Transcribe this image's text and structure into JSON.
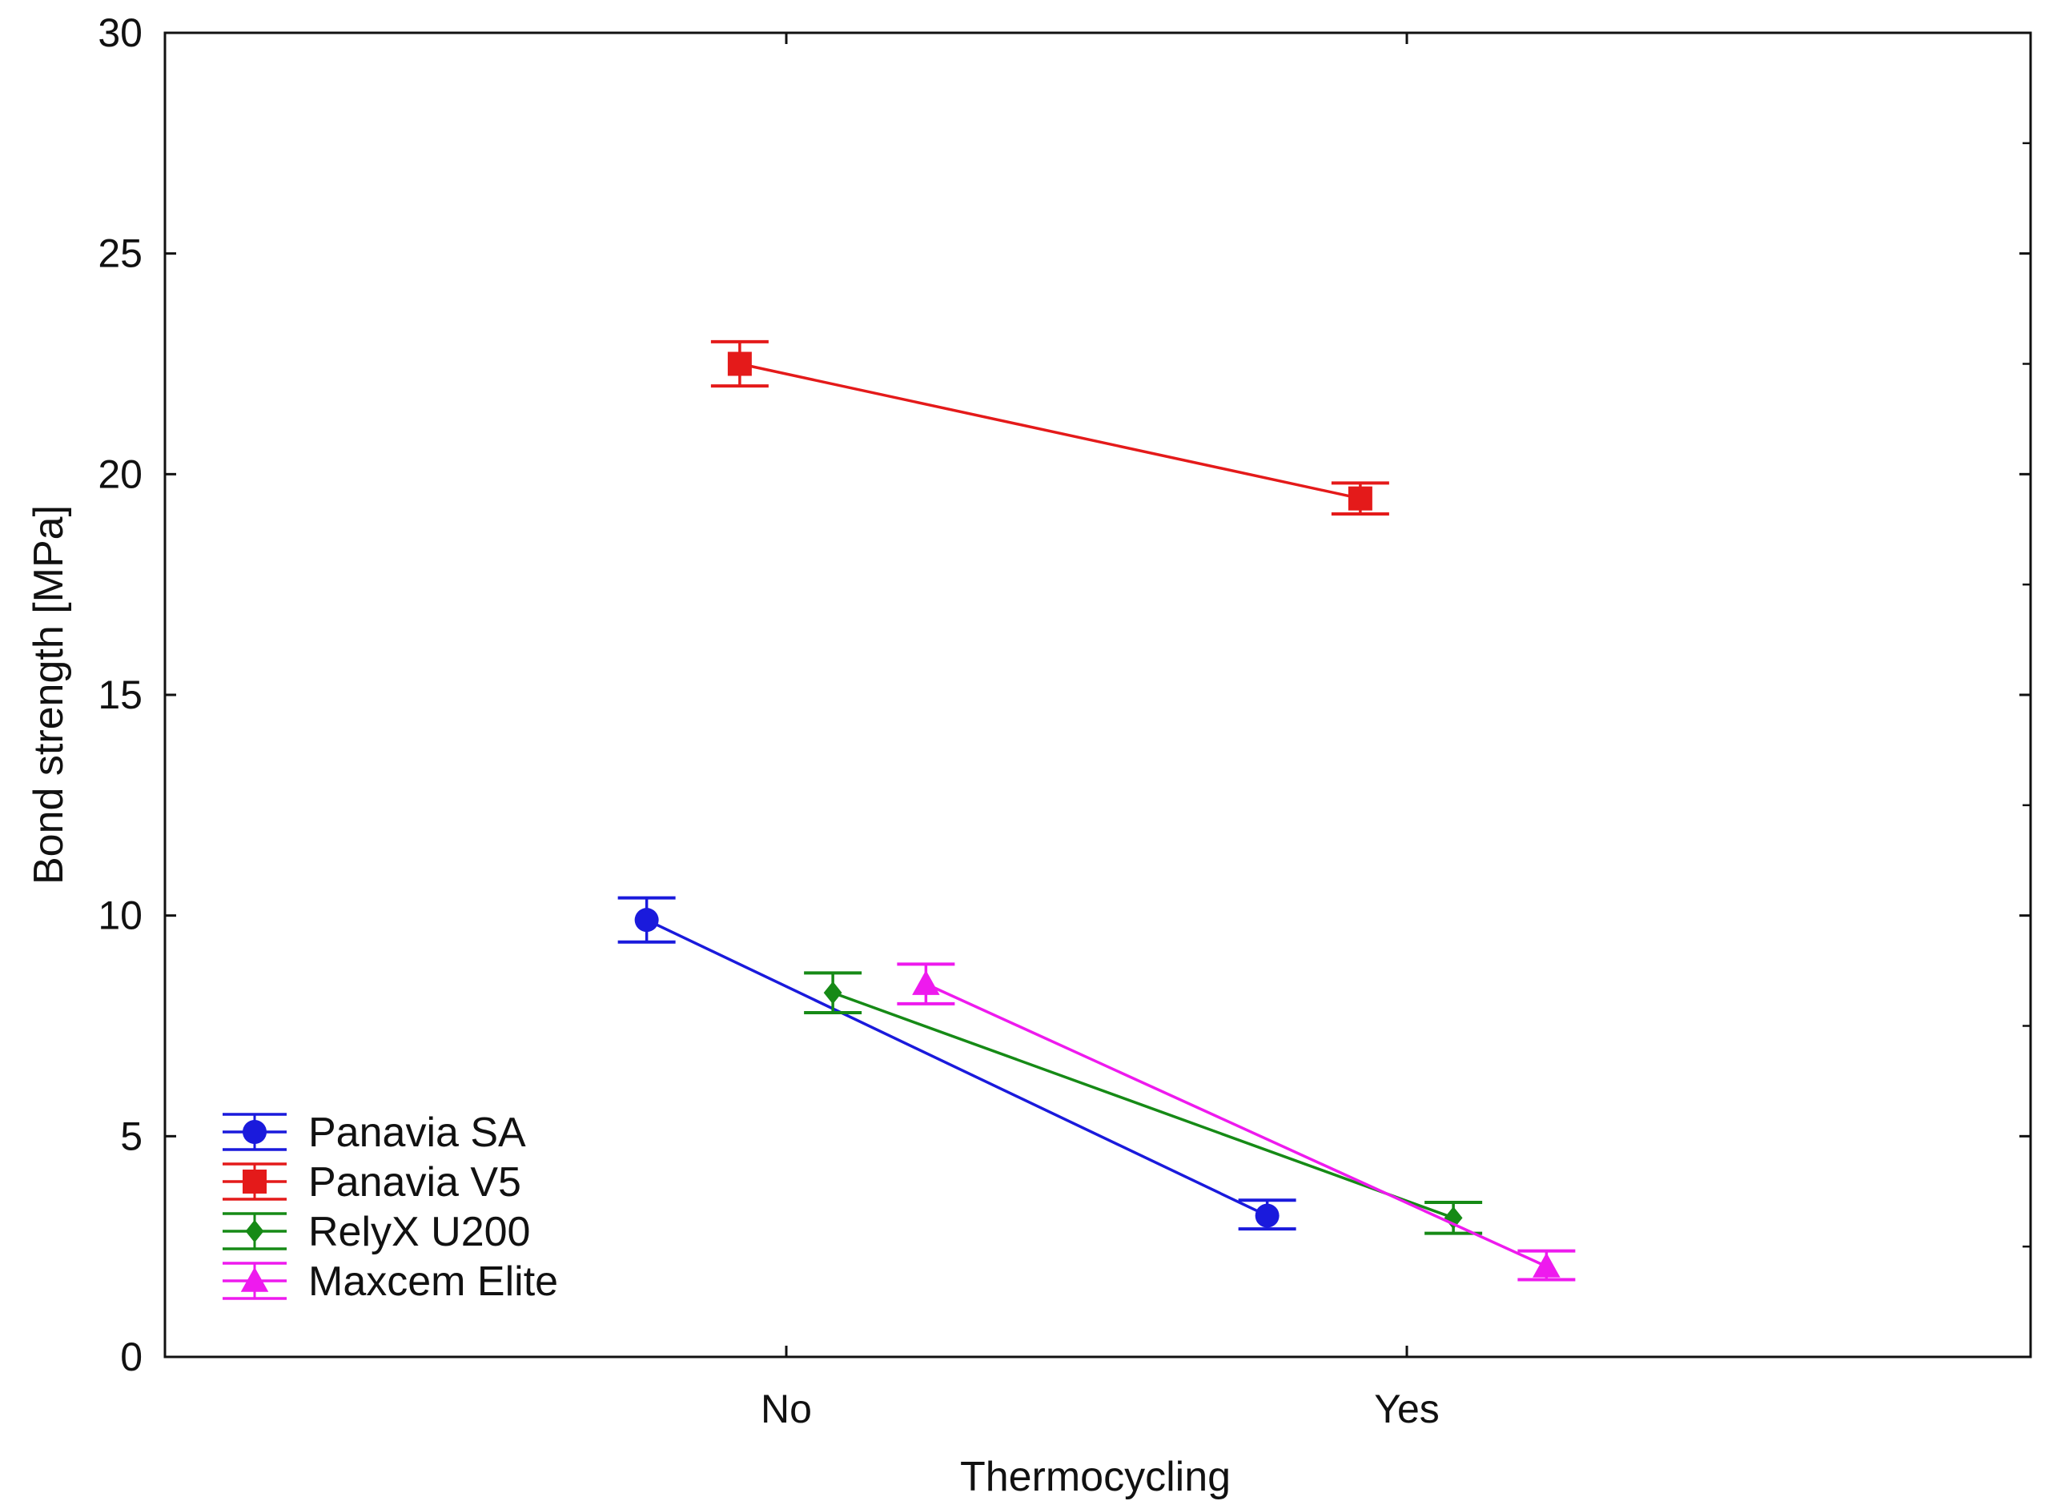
{
  "chart_data": {
    "type": "line",
    "title": "",
    "xlabel": "Thermocycling",
    "ylabel": "Bond strength [MPa]",
    "categories": [
      "No",
      "Yes"
    ],
    "ylim": [
      0,
      30
    ],
    "yticks": [
      0,
      5,
      10,
      15,
      20,
      25,
      30
    ],
    "y_tick_labels": [
      "0",
      "5",
      "10",
      "15",
      "20",
      "25",
      "30"
    ],
    "grid": false,
    "legend_position": "bottom-left",
    "series": [
      {
        "name": "Panavia SA",
        "color": "#1a1adc",
        "marker": "circle",
        "offset": -0.225,
        "values": [
          9.9,
          3.2
        ],
        "error_low": [
          9.4,
          2.9
        ],
        "error_high": [
          10.4,
          3.55
        ]
      },
      {
        "name": "Panavia V5",
        "color": "#e41a1a",
        "marker": "square",
        "offset": -0.075,
        "values": [
          22.5,
          19.45
        ],
        "error_low": [
          22.0,
          19.1
        ],
        "error_high": [
          23.0,
          19.8
        ]
      },
      {
        "name": "RelyX U200",
        "color": "#168a16",
        "marker": "diamond",
        "offset": 0.075,
        "values": [
          8.25,
          3.15
        ],
        "error_low": [
          7.8,
          2.8
        ],
        "error_high": [
          8.7,
          3.5
        ]
      },
      {
        "name": "Maxcem Elite",
        "color": "#ee1aee",
        "marker": "triangle",
        "offset": 0.225,
        "values": [
          8.45,
          2.05
        ],
        "error_low": [
          8.0,
          1.75
        ],
        "error_high": [
          8.9,
          2.4
        ]
      }
    ]
  }
}
